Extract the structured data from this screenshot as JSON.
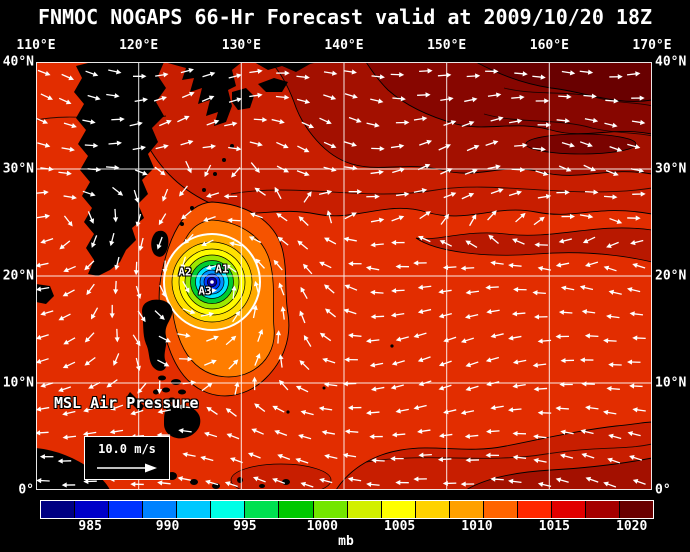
{
  "header": {
    "title": "FNMOC NOGAPS 66-Hr Forecast valid at 2009/10/20 18Z"
  },
  "axes": {
    "lon_labels": [
      "110°E",
      "120°E",
      "130°E",
      "140°E",
      "150°E",
      "160°E",
      "170°E"
    ],
    "lat_labels": [
      "40°N",
      "30°N",
      "20°N",
      "10°N",
      "0°"
    ]
  },
  "map": {
    "field_label": "MSL Air Pressure",
    "wind_scale": {
      "label": "10.0 m/s"
    },
    "storm_markers": [
      {
        "label": "A1"
      },
      {
        "label": "A2"
      },
      {
        "label": "A3"
      }
    ],
    "palette": {
      "background": "#e22d00",
      "bands": [
        "#c81e00",
        "#a31000",
        "#870600",
        "#690000"
      ],
      "ridge_streak": "#b81800",
      "orange_halo": "#f55300",
      "orange": "#ff7d00",
      "typhoon_rings": [
        "#ffaa00",
        "#ffe100",
        "#fffb00",
        "#9ce800",
        "#00cd32",
        "#00e5ff",
        "#0091ff",
        "#003cff",
        "#0a00a0"
      ],
      "land": "#000000",
      "grid": "#ffffff",
      "wind": "#ffffff"
    }
  },
  "colorbar": {
    "unit": "mb",
    "tick_labels": [
      "985",
      "990",
      "995",
      "1000",
      "1005",
      "1010",
      "1015",
      "1020"
    ],
    "colors": [
      "#000082",
      "#0000c8",
      "#0032ff",
      "#0082ff",
      "#00c8ff",
      "#00ffe6",
      "#00e150",
      "#00c800",
      "#73e600",
      "#d2f000",
      "#ffff00",
      "#ffd200",
      "#ffa000",
      "#ff6400",
      "#ff2800",
      "#e10000",
      "#a50000",
      "#690000"
    ]
  },
  "chart_data": {
    "type": "heatmap",
    "subtype": "filled-contour weather map with wind vector overlay",
    "title": "FNMOC NOGAPS 66-Hr Forecast valid at 2009/10/20 18Z",
    "variable": "MSL Air Pressure",
    "units": "mb",
    "model": "FNMOC NOGAPS",
    "forecast_hour": 66,
    "valid_time": "2009/10/20 18Z",
    "lon_range_deg_east": [
      110,
      170
    ],
    "lat_range_deg_north": [
      0,
      40
    ],
    "grid_interval_deg": 10,
    "colorbar_scale_mb": [
      985,
      990,
      995,
      1000,
      1005,
      1010,
      1015,
      1020
    ],
    "colorbar_fill_step_mb": 2.5,
    "legend_position": "bottom",
    "grid": true,
    "features": [
      {
        "name": "tropical-cyclone",
        "approx_lon_e": 127,
        "approx_lat_n": 19.5,
        "central_pressure_mb": "below 985",
        "markers": [
          "A1",
          "A2",
          "A3"
        ],
        "description": "closed low with concentric rings from orange (~1005 mb) down to dark blue (<985 mb)"
      },
      {
        "name": "subtropical-high",
        "region": "northeast of domain, ~145-170E / 30-40N",
        "pressure_mb": "1015-1020+ (darkest red shades)"
      },
      {
        "name": "ambient-field",
        "pressure_mb": "1010-1015 over most of the domain (red shades)"
      },
      {
        "name": "low-pressure-halo",
        "region": "around and south of cyclone, ~120-135E / 8-25N",
        "pressure_mb": "1005-1010 (orange shades)"
      }
    ],
    "wind_reference_vector_mps": 10.0,
    "overlay": "surface wind vectors drawn as white arrows; cyclonic (counterclockwise) rotation around the typhoon, easterly trades to the south, westerlies to the north"
  }
}
